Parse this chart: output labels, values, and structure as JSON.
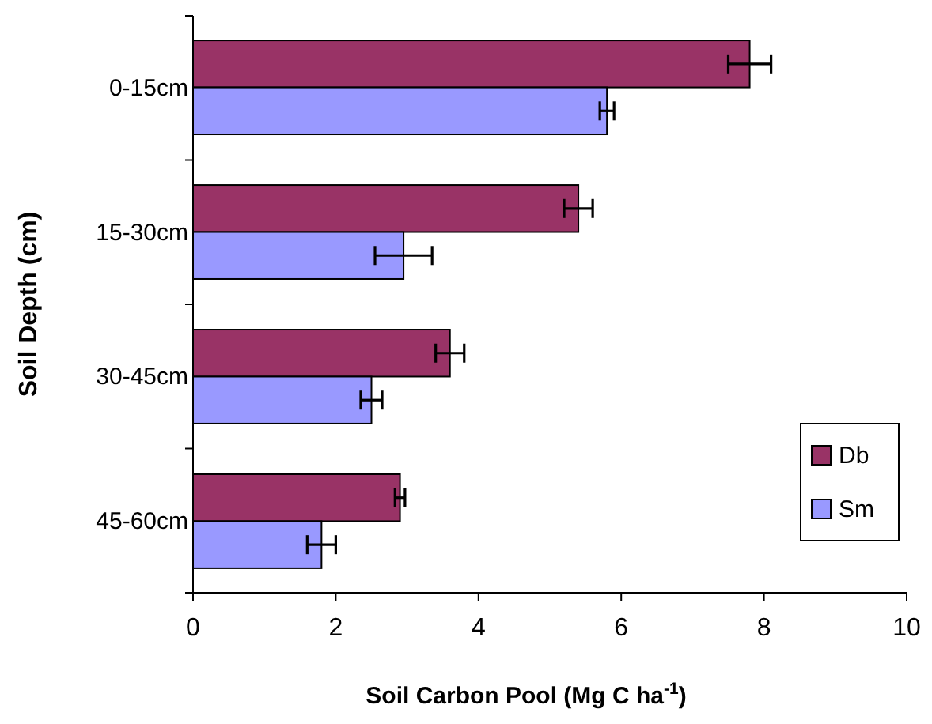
{
  "chart_data": {
    "type": "bar",
    "orientation": "horizontal",
    "xlabel": "Soil Carbon Pool (Mg C ha$^{-1}$)",
    "ylabel": "Soil Depth (cm)",
    "categories": [
      "0-15cm",
      "15-30cm",
      "30-45cm",
      "45-60cm"
    ],
    "series": [
      {
        "name": "Db",
        "color": "#993366",
        "values": [
          7.8,
          5.4,
          3.6,
          2.9
        ],
        "errors": [
          0.3,
          0.2,
          0.2,
          0.07
        ]
      },
      {
        "name": "Sm",
        "color": "#9999ff",
        "values": [
          5.8,
          2.95,
          2.5,
          1.8
        ],
        "errors": [
          0.1,
          0.4,
          0.15,
          0.2
        ]
      }
    ],
    "xlim": [
      0,
      10
    ],
    "xticks": [
      0,
      2,
      4,
      6,
      8,
      10
    ],
    "grid": false,
    "legend": "bottom right"
  }
}
